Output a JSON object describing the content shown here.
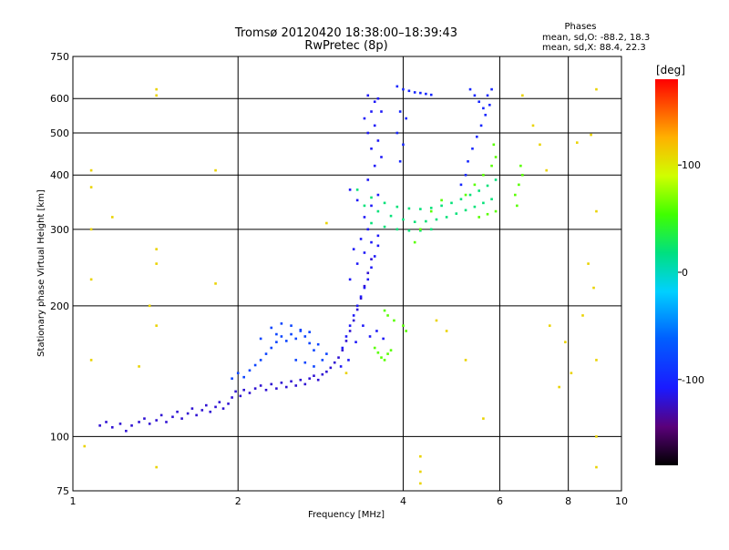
{
  "chart_data": {
    "type": "scatter",
    "title": "Tromsø 20120420 18:38:00–18:39:43",
    "subtitle": "RwPretec (8p)",
    "xlabel": "Frequency [MHz]",
    "ylabel": "Stationary phase Virtual Height [km]",
    "x_scale": "log",
    "y_scale": "log",
    "xlim": [
      1,
      10
    ],
    "ylim": [
      75,
      750
    ],
    "x_ticks": [
      1,
      2,
      4,
      6,
      8,
      10
    ],
    "y_ticks": [
      75,
      100,
      200,
      300,
      400,
      500,
      600,
      750
    ],
    "grid": true,
    "phases_box": {
      "heading": "Phases",
      "line_o": "mean, sd,O: -88.2, 18.3",
      "line_x": "mean, sd,X:  88.4, 22.3"
    },
    "colorbar": {
      "label": "[deg]",
      "range": [
        -180,
        180
      ],
      "ticks": [
        100,
        0,
        -100
      ]
    },
    "colors": {
      "frame": "#000000",
      "background": "#ffffff"
    },
    "series": [
      {
        "values": [
          {
            "x": 1.12,
            "y": 106
          },
          {
            "x": 1.15,
            "y": 108
          },
          {
            "x": 1.18,
            "y": 105
          },
          {
            "x": 1.22,
            "y": 107
          },
          {
            "x": 1.25,
            "y": 103
          },
          {
            "x": 1.28,
            "y": 106
          },
          {
            "x": 1.32,
            "y": 108
          },
          {
            "x": 1.35,
            "y": 110
          },
          {
            "x": 1.38,
            "y": 107
          },
          {
            "x": 1.42,
            "y": 109
          },
          {
            "x": 1.45,
            "y": 112
          },
          {
            "x": 1.48,
            "y": 108
          },
          {
            "x": 1.52,
            "y": 111
          },
          {
            "x": 1.55,
            "y": 114
          },
          {
            "x": 1.58,
            "y": 110
          },
          {
            "x": 1.62,
            "y": 113
          },
          {
            "x": 1.65,
            "y": 116
          },
          {
            "x": 1.68,
            "y": 112
          },
          {
            "x": 1.72,
            "y": 115
          },
          {
            "x": 1.75,
            "y": 118
          },
          {
            "x": 1.78,
            "y": 114
          },
          {
            "x": 1.82,
            "y": 117
          },
          {
            "x": 1.85,
            "y": 120
          },
          {
            "x": 1.88,
            "y": 116
          },
          {
            "x": 1.92,
            "y": 119
          },
          {
            "x": 1.95,
            "y": 123
          },
          {
            "x": 1.98,
            "y": 127
          },
          {
            "x": 2.02,
            "y": 124
          },
          {
            "x": 2.05,
            "y": 128
          },
          {
            "x": 2.1,
            "y": 126
          },
          {
            "x": 2.15,
            "y": 129
          },
          {
            "x": 2.2,
            "y": 131
          },
          {
            "x": 2.25,
            "y": 128
          },
          {
            "x": 2.3,
            "y": 132
          },
          {
            "x": 2.35,
            "y": 129
          },
          {
            "x": 2.4,
            "y": 133
          },
          {
            "x": 2.45,
            "y": 130
          },
          {
            "x": 2.5,
            "y": 134
          },
          {
            "x": 2.55,
            "y": 131
          },
          {
            "x": 2.6,
            "y": 135
          },
          {
            "x": 2.65,
            "y": 132
          },
          {
            "x": 2.7,
            "y": 136
          },
          {
            "x": 2.75,
            "y": 138
          },
          {
            "x": 2.8,
            "y": 135
          },
          {
            "x": 2.85,
            "y": 139
          },
          {
            "x": 2.9,
            "y": 141
          },
          {
            "x": 2.95,
            "y": 144
          },
          {
            "x": 3.0,
            "y": 148
          },
          {
            "x": 3.05,
            "y": 152
          },
          {
            "x": 3.1,
            "y": 158
          },
          {
            "x": 3.15,
            "y": 166
          },
          {
            "x": 3.2,
            "y": 175
          },
          {
            "x": 3.25,
            "y": 185
          },
          {
            "x": 3.3,
            "y": 196
          },
          {
            "x": 3.35,
            "y": 208
          },
          {
            "x": 3.4,
            "y": 222
          },
          {
            "x": 3.45,
            "y": 238
          },
          {
            "x": 3.5,
            "y": 256
          }
        ]
      },
      {
        "values": [
          {
            "x": 1.95,
            "y": 136
          },
          {
            "x": 2.0,
            "y": 140
          },
          {
            "x": 2.05,
            "y": 137
          },
          {
            "x": 2.1,
            "y": 142
          },
          {
            "x": 2.15,
            "y": 146
          },
          {
            "x": 2.2,
            "y": 150
          },
          {
            "x": 2.25,
            "y": 155
          },
          {
            "x": 2.3,
            "y": 160
          },
          {
            "x": 2.35,
            "y": 165
          },
          {
            "x": 2.4,
            "y": 170
          },
          {
            "x": 2.45,
            "y": 166
          },
          {
            "x": 2.5,
            "y": 172
          },
          {
            "x": 2.55,
            "y": 168
          },
          {
            "x": 2.6,
            "y": 175
          },
          {
            "x": 2.65,
            "y": 170
          },
          {
            "x": 2.7,
            "y": 164
          },
          {
            "x": 2.75,
            "y": 158
          },
          {
            "x": 2.8,
            "y": 163
          },
          {
            "x": 2.3,
            "y": 178
          },
          {
            "x": 2.4,
            "y": 182
          },
          {
            "x": 2.5,
            "y": 180
          },
          {
            "x": 2.6,
            "y": 176
          },
          {
            "x": 2.7,
            "y": 174
          },
          {
            "x": 2.2,
            "y": 168
          },
          {
            "x": 2.35,
            "y": 172
          },
          {
            "x": 2.55,
            "y": 150
          },
          {
            "x": 2.65,
            "y": 148
          },
          {
            "x": 2.75,
            "y": 145
          },
          {
            "x": 2.85,
            "y": 150
          },
          {
            "x": 2.9,
            "y": 155
          }
        ]
      },
      {
        "values": [
          {
            "x": 3.1,
            "y": 160
          },
          {
            "x": 3.15,
            "y": 170
          },
          {
            "x": 3.2,
            "y": 180
          },
          {
            "x": 3.25,
            "y": 190
          },
          {
            "x": 3.3,
            "y": 200
          },
          {
            "x": 3.35,
            "y": 210
          },
          {
            "x": 3.4,
            "y": 220
          },
          {
            "x": 3.45,
            "y": 230
          },
          {
            "x": 3.5,
            "y": 245
          },
          {
            "x": 3.55,
            "y": 260
          },
          {
            "x": 3.6,
            "y": 275
          },
          {
            "x": 3.2,
            "y": 230
          },
          {
            "x": 3.3,
            "y": 250
          },
          {
            "x": 3.4,
            "y": 265
          },
          {
            "x": 3.5,
            "y": 280
          },
          {
            "x": 3.6,
            "y": 290
          },
          {
            "x": 3.25,
            "y": 270
          },
          {
            "x": 3.35,
            "y": 285
          },
          {
            "x": 3.45,
            "y": 300
          },
          {
            "x": 3.4,
            "y": 320
          },
          {
            "x": 3.5,
            "y": 340
          },
          {
            "x": 3.6,
            "y": 360
          },
          {
            "x": 3.3,
            "y": 350
          },
          {
            "x": 3.2,
            "y": 370
          },
          {
            "x": 3.45,
            "y": 390
          },
          {
            "x": 3.55,
            "y": 420
          },
          {
            "x": 3.5,
            "y": 460
          },
          {
            "x": 3.45,
            "y": 500
          },
          {
            "x": 3.4,
            "y": 540
          },
          {
            "x": 3.5,
            "y": 560
          },
          {
            "x": 3.55,
            "y": 520
          },
          {
            "x": 3.6,
            "y": 480
          },
          {
            "x": 3.65,
            "y": 440
          },
          {
            "x": 3.55,
            "y": 590
          },
          {
            "x": 3.45,
            "y": 610
          },
          {
            "x": 3.6,
            "y": 600
          },
          {
            "x": 3.65,
            "y": 560
          },
          {
            "x": 3.38,
            "y": 180
          },
          {
            "x": 3.48,
            "y": 170
          },
          {
            "x": 3.58,
            "y": 175
          },
          {
            "x": 3.68,
            "y": 168
          },
          {
            "x": 3.28,
            "y": 165
          },
          {
            "x": 3.18,
            "y": 150
          },
          {
            "x": 3.08,
            "y": 145
          }
        ]
      },
      {
        "values": [
          {
            "x": 3.4,
            "y": 340
          },
          {
            "x": 3.6,
            "y": 330
          },
          {
            "x": 3.8,
            "y": 322
          },
          {
            "x": 4.0,
            "y": 316
          },
          {
            "x": 4.2,
            "y": 312
          },
          {
            "x": 4.4,
            "y": 313
          },
          {
            "x": 4.6,
            "y": 316
          },
          {
            "x": 4.8,
            "y": 320
          },
          {
            "x": 5.0,
            "y": 326
          },
          {
            "x": 5.2,
            "y": 332
          },
          {
            "x": 5.4,
            "y": 338
          },
          {
            "x": 5.6,
            "y": 345
          },
          {
            "x": 5.8,
            "y": 352
          },
          {
            "x": 3.5,
            "y": 310
          },
          {
            "x": 3.7,
            "y": 304
          },
          {
            "x": 3.9,
            "y": 300
          },
          {
            "x": 4.1,
            "y": 298
          },
          {
            "x": 4.3,
            "y": 298
          },
          {
            "x": 4.5,
            "y": 300
          },
          {
            "x": 3.3,
            "y": 370
          },
          {
            "x": 3.5,
            "y": 355
          },
          {
            "x": 3.7,
            "y": 345
          },
          {
            "x": 3.9,
            "y": 338
          },
          {
            "x": 4.1,
            "y": 335
          },
          {
            "x": 4.3,
            "y": 334
          },
          {
            "x": 4.5,
            "y": 336
          },
          {
            "x": 4.7,
            "y": 340
          },
          {
            "x": 4.9,
            "y": 345
          },
          {
            "x": 5.1,
            "y": 352
          },
          {
            "x": 5.3,
            "y": 360
          },
          {
            "x": 5.5,
            "y": 368
          },
          {
            "x": 5.7,
            "y": 378
          },
          {
            "x": 5.9,
            "y": 390
          }
        ]
      },
      {
        "values": [
          {
            "x": 3.9,
            "y": 640
          },
          {
            "x": 4.0,
            "y": 630
          },
          {
            "x": 4.1,
            "y": 625
          },
          {
            "x": 4.2,
            "y": 620
          },
          {
            "x": 4.3,
            "y": 618
          },
          {
            "x": 4.4,
            "y": 615
          },
          {
            "x": 4.5,
            "y": 612
          },
          {
            "x": 3.95,
            "y": 560
          },
          {
            "x": 4.05,
            "y": 540
          },
          {
            "x": 3.9,
            "y": 500
          },
          {
            "x": 4.0,
            "y": 470
          },
          {
            "x": 3.95,
            "y": 430
          },
          {
            "x": 5.3,
            "y": 630
          },
          {
            "x": 5.4,
            "y": 610
          },
          {
            "x": 5.5,
            "y": 590
          },
          {
            "x": 5.6,
            "y": 570
          },
          {
            "x": 5.7,
            "y": 610
          },
          {
            "x": 5.8,
            "y": 630
          },
          {
            "x": 5.75,
            "y": 580
          },
          {
            "x": 5.65,
            "y": 550
          },
          {
            "x": 5.55,
            "y": 520
          },
          {
            "x": 5.45,
            "y": 490
          },
          {
            "x": 5.35,
            "y": 460
          },
          {
            "x": 5.25,
            "y": 430
          },
          {
            "x": 5.2,
            "y": 400
          },
          {
            "x": 5.1,
            "y": 380
          }
        ]
      },
      {
        "values": [
          {
            "x": 3.55,
            "y": 160
          },
          {
            "x": 3.6,
            "y": 156
          },
          {
            "x": 3.65,
            "y": 152
          },
          {
            "x": 3.7,
            "y": 150
          },
          {
            "x": 3.75,
            "y": 155
          },
          {
            "x": 3.8,
            "y": 158
          },
          {
            "x": 3.7,
            "y": 195
          },
          {
            "x": 3.75,
            "y": 190
          },
          {
            "x": 3.85,
            "y": 185
          },
          {
            "x": 4.3,
            "y": 300
          },
          {
            "x": 4.2,
            "y": 280
          },
          {
            "x": 4.5,
            "y": 330
          },
          {
            "x": 4.7,
            "y": 350
          },
          {
            "x": 5.2,
            "y": 360
          },
          {
            "x": 5.4,
            "y": 380
          },
          {
            "x": 5.6,
            "y": 400
          },
          {
            "x": 5.8,
            "y": 420
          },
          {
            "x": 5.9,
            "y": 440
          },
          {
            "x": 5.85,
            "y": 470
          },
          {
            "x": 5.5,
            "y": 320
          },
          {
            "x": 5.7,
            "y": 325
          },
          {
            "x": 5.9,
            "y": 330
          },
          {
            "x": 6.4,
            "y": 360
          },
          {
            "x": 6.5,
            "y": 380
          },
          {
            "x": 6.6,
            "y": 400
          },
          {
            "x": 6.55,
            "y": 420
          },
          {
            "x": 6.45,
            "y": 340
          },
          {
            "x": 4.0,
            "y": 180
          },
          {
            "x": 4.05,
            "y": 175
          }
        ]
      },
      {
        "values": [
          {
            "x": 1.05,
            "y": 95
          },
          {
            "x": 1.08,
            "y": 410
          },
          {
            "x": 1.08,
            "y": 375
          },
          {
            "x": 1.08,
            "y": 300
          },
          {
            "x": 1.08,
            "y": 230
          },
          {
            "x": 1.08,
            "y": 150
          },
          {
            "x": 1.18,
            "y": 320
          },
          {
            "x": 1.38,
            "y": 200
          },
          {
            "x": 1.42,
            "y": 630
          },
          {
            "x": 1.42,
            "y": 610
          },
          {
            "x": 1.42,
            "y": 270
          },
          {
            "x": 1.42,
            "y": 250
          },
          {
            "x": 1.42,
            "y": 180
          },
          {
            "x": 1.42,
            "y": 85
          },
          {
            "x": 1.32,
            "y": 145
          },
          {
            "x": 1.82,
            "y": 410
          },
          {
            "x": 1.82,
            "y": 225
          },
          {
            "x": 2.9,
            "y": 310
          },
          {
            "x": 3.15,
            "y": 140
          },
          {
            "x": 4.3,
            "y": 90
          },
          {
            "x": 4.3,
            "y": 83
          },
          {
            "x": 4.3,
            "y": 78
          },
          {
            "x": 4.6,
            "y": 185
          },
          {
            "x": 4.8,
            "y": 175
          },
          {
            "x": 5.2,
            "y": 150
          },
          {
            "x": 5.6,
            "y": 110
          },
          {
            "x": 6.6,
            "y": 610
          },
          {
            "x": 6.9,
            "y": 520
          },
          {
            "x": 7.1,
            "y": 470
          },
          {
            "x": 7.3,
            "y": 410
          },
          {
            "x": 7.4,
            "y": 180
          },
          {
            "x": 7.9,
            "y": 165
          },
          {
            "x": 8.3,
            "y": 475
          },
          {
            "x": 8.5,
            "y": 190
          },
          {
            "x": 8.8,
            "y": 495
          },
          {
            "x": 9.0,
            "y": 630
          },
          {
            "x": 9.0,
            "y": 330
          },
          {
            "x": 9.0,
            "y": 150
          },
          {
            "x": 9.0,
            "y": 100
          },
          {
            "x": 9.0,
            "y": 85
          },
          {
            "x": 8.7,
            "y": 250
          },
          {
            "x": 8.9,
            "y": 220
          },
          {
            "x": 7.7,
            "y": 130
          },
          {
            "x": 8.1,
            "y": 140
          }
        ]
      }
    ],
    "point_phases": [
      -120,
      -80,
      -110,
      20,
      -100,
      60,
      110
    ]
  }
}
